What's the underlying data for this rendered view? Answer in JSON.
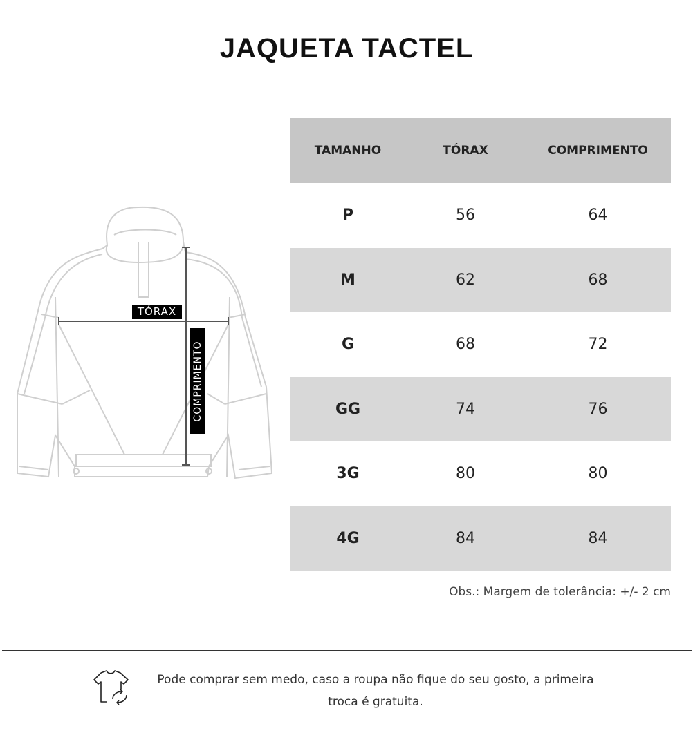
{
  "title": "JAQUETA TACTEL",
  "diagram": {
    "chest_label": "TÓRAX",
    "length_label": "COMPRIMENTO"
  },
  "table": {
    "headers": [
      "TAMANHO",
      "TÓRAX",
      "COMPRIMENTO"
    ],
    "rows": [
      [
        "P",
        "56",
        "64"
      ],
      [
        "M",
        "62",
        "68"
      ],
      [
        "G",
        "68",
        "72"
      ],
      [
        "GG",
        "74",
        "76"
      ],
      [
        "3G",
        "80",
        "80"
      ],
      [
        "4G",
        "84",
        "84"
      ]
    ]
  },
  "note": "Obs.: Margem de tolerância: +/- 2 cm",
  "footer": {
    "icon": "tshirt-exchange-icon",
    "text": "Pode comprar sem medo, caso a roupa não fique do seu gosto, a primeira troca é gratuita."
  },
  "colors": {
    "header_bg": "#c6c6c6",
    "alt_row_bg": "#d8d8d8"
  }
}
